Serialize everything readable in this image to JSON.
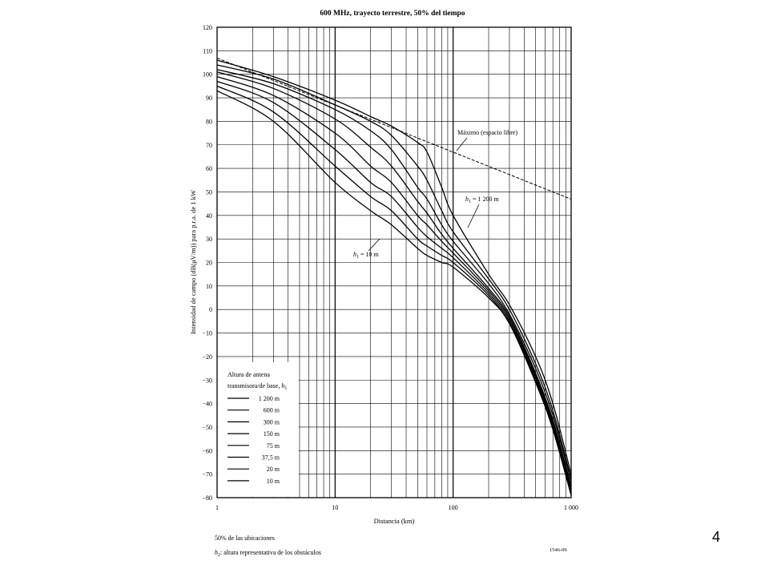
{
  "slide": {
    "number": "4"
  },
  "figure": {
    "code": "1546-09",
    "footnote_1": "50% de las ubicaciones",
    "footnote_2_var": "h",
    "footnote_2_sub": "2",
    "footnote_2_text": ": altura representativa de los obstáculos"
  },
  "chart_data": {
    "type": "line",
    "title": "600 MHz, trayecto terrestre, 50% del tiempo",
    "xlabel": "Distancia (km)",
    "ylabel": "Intensidad de campo (dB(μV/m)) para p.r.a. de 1 kW",
    "x_scale": "log",
    "xlim": [
      1,
      1000
    ],
    "ylim": [
      -80,
      120
    ],
    "y_ticks": [
      "120",
      "110",
      "100",
      "90",
      "80",
      "70",
      "60",
      "50",
      "40",
      "30",
      "20",
      "10",
      "0",
      "−10",
      "−20",
      "−30",
      "−40",
      "−50",
      "−60",
      "−70",
      "−80"
    ],
    "x_tick_labels": [
      {
        "value": 1,
        "label": "1"
      },
      {
        "value": 10,
        "label": "10"
      },
      {
        "value": 100,
        "label": "100"
      },
      {
        "value": 1000,
        "label": "1 000"
      }
    ],
    "grid": true,
    "legend": {
      "position": "bottom-left",
      "title_line1": "Altura de antena",
      "title_line2": "transmisora/de base, ",
      "title_var": "h",
      "title_sub": "1",
      "entries": [
        "1 200 m",
        "600 m",
        "300 m",
        "150 m",
        "75 m",
        "37,5 m",
        "20 m",
        "10 m"
      ]
    },
    "annotations": {
      "free_space": "Máximo (espacio libre)",
      "h1_top_value": " = 1 200 m",
      "h1_bottom_value": " = 10 m",
      "h_var": "h",
      "h_sub": "1"
    },
    "free_space": {
      "name": "Máximo (espacio libre)",
      "x": [
        1,
        1000
      ],
      "y": [
        106.9,
        46.9
      ]
    },
    "series": [
      {
        "name": "1 200 m",
        "x": [
          1,
          3,
          10,
          20,
          30,
          50,
          60,
          80,
          100,
          200,
          300,
          500,
          700,
          1000
        ],
        "y": [
          106,
          99,
          89,
          82,
          78,
          71,
          67,
          52,
          40,
          15,
          2,
          -20,
          -40,
          -70
        ]
      },
      {
        "name": "600 m",
        "x": [
          1,
          3,
          10,
          20,
          30,
          50,
          60,
          80,
          100,
          200,
          300,
          500,
          700,
          1000
        ],
        "y": [
          104,
          98,
          87,
          80,
          74,
          61,
          55,
          42,
          33,
          13,
          0,
          -23,
          -43,
          -72
        ]
      },
      {
        "name": "300 m",
        "x": [
          1,
          3,
          10,
          20,
          30,
          50,
          60,
          80,
          100,
          200,
          300,
          500,
          700,
          1000
        ],
        "y": [
          102,
          96,
          85,
          76,
          68,
          52,
          47,
          36,
          29,
          11,
          -2,
          -25,
          -45,
          -73
        ]
      },
      {
        "name": "150 m",
        "x": [
          1,
          3,
          10,
          20,
          30,
          50,
          60,
          80,
          100,
          200,
          300,
          500,
          700,
          1000
        ],
        "y": [
          101,
          94,
          81,
          69,
          61,
          46,
          41,
          32,
          26,
          9,
          -3,
          -27,
          -47,
          -75
        ]
      },
      {
        "name": "75 m",
        "x": [
          1,
          3,
          10,
          20,
          30,
          50,
          60,
          80,
          100,
          200,
          300,
          500,
          700,
          1000
        ],
        "y": [
          99,
          91,
          75,
          61,
          54,
          40,
          36,
          29,
          24,
          8,
          -4,
          -28,
          -48,
          -76
        ]
      },
      {
        "name": "37,5 m",
        "x": [
          1,
          3,
          10,
          20,
          30,
          50,
          60,
          80,
          100,
          200,
          300,
          500,
          700,
          1000
        ],
        "y": [
          97,
          88,
          68,
          54,
          48,
          35,
          31,
          26,
          22,
          7,
          -5,
          -29,
          -49,
          -77
        ]
      },
      {
        "name": "20 m",
        "x": [
          1,
          3,
          10,
          20,
          30,
          50,
          60,
          80,
          100,
          200,
          300,
          500,
          700,
          1000
        ],
        "y": [
          95,
          84,
          61,
          48,
          42,
          30,
          27,
          23,
          20,
          6,
          -6,
          -30,
          -50,
          -78
        ]
      },
      {
        "name": "10 m",
        "x": [
          1,
          3,
          10,
          20,
          30,
          50,
          60,
          80,
          100,
          200,
          300,
          500,
          700,
          1000
        ],
        "y": [
          93,
          80,
          54,
          42,
          36,
          26,
          23,
          20,
          18,
          5,
          -6,
          -31,
          -51,
          -79
        ]
      }
    ]
  }
}
